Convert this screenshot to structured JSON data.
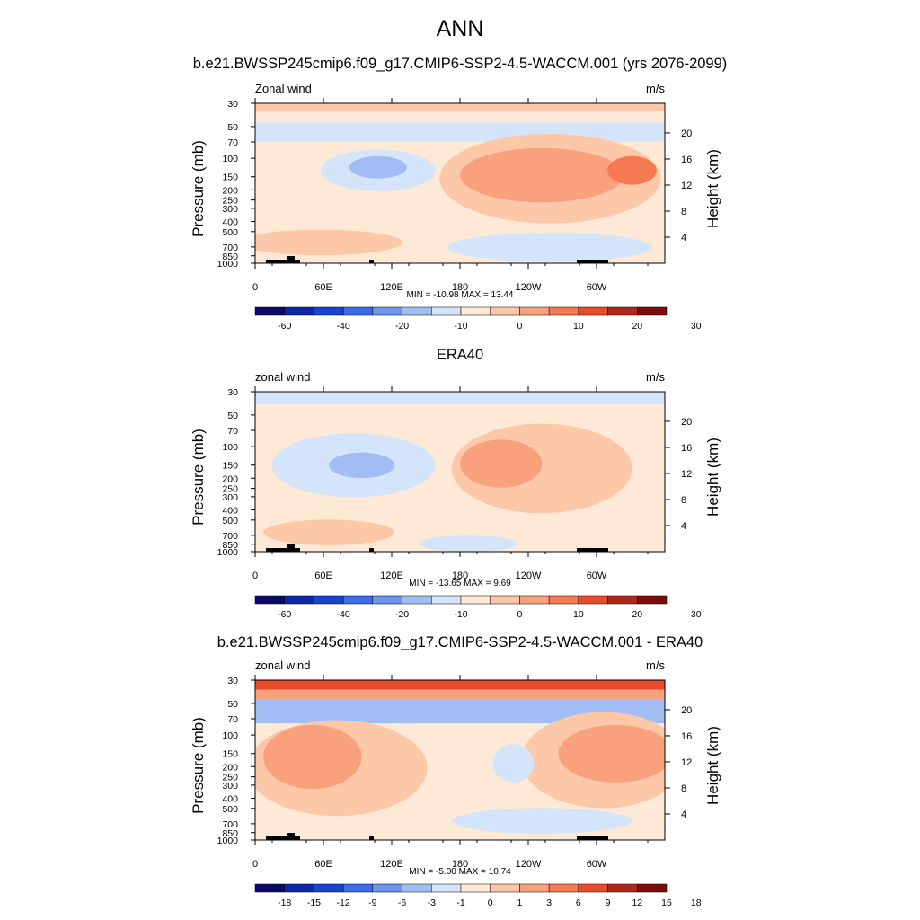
{
  "header": {
    "title": "ANN",
    "subtitle": "b.e21.BWSSP245cmip6.f09_g17.CMIP6-SSP2-4.5-WACCM.001 (yrs 2076-2099)"
  },
  "colors": {
    "main_scale": [
      "#0a0a6e",
      "#0b27a8",
      "#1546d2",
      "#3c6ce8",
      "#6f95ee",
      "#a2bdf4",
      "#d4e4fa",
      "#fee8d6",
      "#fcc8a8",
      "#f9a07d",
      "#f57a52",
      "#ea4c2b",
      "#b02716",
      "#7d0c0c"
    ],
    "diff_scale": [
      "#0a0a6e",
      "#0b27a8",
      "#1546d2",
      "#3c6ce8",
      "#6f95ee",
      "#a2bdf4",
      "#d4e4fa",
      "#fee8d6",
      "#fcc8a8",
      "#f9a07d",
      "#f57a52",
      "#ea4c2b",
      "#b02716",
      "#7d0c0c"
    ],
    "topography": "#000000"
  },
  "chart_data": [
    {
      "type": "heatmap",
      "title": "",
      "left_label": "Zonal wind",
      "right_label": "m/s",
      "xlabel": "",
      "ylabel": "Pressure (mb)",
      "ylabel_right": "Height (km)",
      "x_ticks": [
        "0",
        "60E",
        "120E",
        "180",
        "120W",
        "60W"
      ],
      "p_ticks": [
        "30",
        "50",
        "70",
        "100",
        "150",
        "200",
        "250",
        "300",
        "400",
        "500",
        "700",
        "850",
        "1000"
      ],
      "z_ticks": [
        "20",
        "16",
        "12",
        "8",
        "4"
      ],
      "stats": "MIN = -10.98  MAX =  13.44",
      "min": -10.98,
      "max": 13.44,
      "colorbar_labels": [
        "-60",
        "-40",
        "-20",
        "-10",
        "0",
        "10",
        "20",
        "30"
      ]
    },
    {
      "type": "heatmap",
      "title": "ERA40",
      "left_label": "zonal wind",
      "right_label": "m/s",
      "xlabel": "",
      "ylabel": "Pressure (mb)",
      "ylabel_right": "Height (km)",
      "x_ticks": [
        "0",
        "60E",
        "120E",
        "180",
        "120W",
        "60W"
      ],
      "p_ticks": [
        "30",
        "50",
        "70",
        "100",
        "150",
        "200",
        "250",
        "300",
        "400",
        "500",
        "700",
        "850",
        "1000"
      ],
      "z_ticks": [
        "20",
        "16",
        "12",
        "8",
        "4"
      ],
      "stats": "MIN = -13.65  MAX =   9.69",
      "min": -13.65,
      "max": 9.69,
      "colorbar_labels": [
        "-60",
        "-40",
        "-20",
        "-10",
        "0",
        "10",
        "20",
        "30"
      ]
    },
    {
      "type": "heatmap",
      "title": "b.e21.BWSSP245cmip6.f09_g17.CMIP6-SSP2-4.5-WACCM.001 - ERA40",
      "left_label": "zonal wind",
      "right_label": "m/s",
      "xlabel": "",
      "ylabel": "Pressure (mb)",
      "ylabel_right": "Height (km)",
      "x_ticks": [
        "0",
        "60E",
        "120E",
        "180",
        "120W",
        "60W"
      ],
      "p_ticks": [
        "30",
        "50",
        "70",
        "100",
        "150",
        "200",
        "250",
        "300",
        "400",
        "500",
        "700",
        "850",
        "1000"
      ],
      "z_ticks": [
        "20",
        "16",
        "12",
        "8",
        "4"
      ],
      "stats": "MIN =  -5.00  MAX =  10.74",
      "min": -5.0,
      "max": 10.74,
      "colorbar_labels": [
        "-18",
        "-15",
        "-12",
        "-9",
        "-6",
        "-3",
        "-1",
        "0",
        "1",
        "3",
        "6",
        "9",
        "12",
        "15",
        "18"
      ]
    }
  ]
}
